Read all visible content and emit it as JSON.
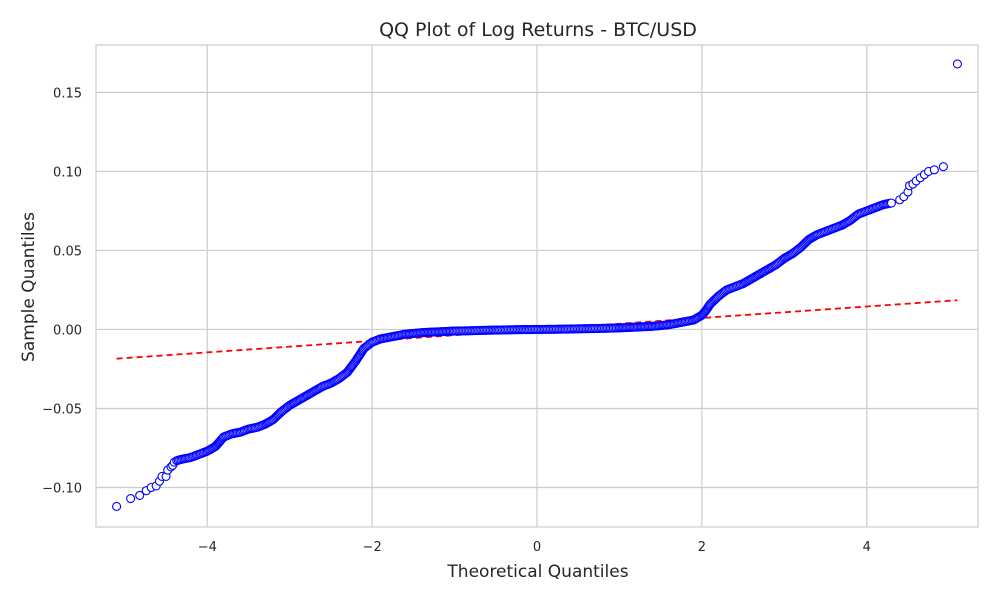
{
  "colors": {
    "background": "#ffffff",
    "plot_background": "#ffffff",
    "grid": "#cccccc",
    "frame": "#cccccc",
    "markers": "#0000ff",
    "reference_line": "#ff0000",
    "text": "#262626"
  },
  "chart_data": {
    "type": "scatter",
    "title": "QQ Plot of Log Returns - BTC/USD",
    "xlabel": "Theoretical Quantiles",
    "ylabel": "Sample Quantiles",
    "xlim": [
      -5.35,
      5.35
    ],
    "ylim": [
      -0.125,
      0.18
    ],
    "grid": true,
    "legend": "none",
    "x_ticks": [
      -4,
      -2,
      0,
      2,
      4
    ],
    "x_tick_labels": [
      "−4",
      "−2",
      "0",
      "2",
      "4"
    ],
    "y_ticks": [
      -0.1,
      -0.05,
      0.0,
      0.05,
      0.1,
      0.15
    ],
    "y_tick_labels": [
      "−0.10",
      "−0.05",
      "0.00",
      "0.05",
      "0.10",
      "0.15"
    ],
    "series": [
      {
        "marker": "open-circle",
        "color": "#0000ff",
        "points": [
          [
            -5.1,
            -0.112
          ],
          [
            -4.93,
            -0.107
          ],
          [
            -4.82,
            -0.105
          ],
          [
            -4.74,
            -0.102
          ],
          [
            -4.68,
            -0.1
          ],
          [
            -4.62,
            -0.099
          ],
          [
            -4.58,
            -0.096
          ],
          [
            -4.55,
            -0.093
          ],
          [
            -4.5,
            -0.093
          ],
          [
            -4.48,
            -0.089
          ],
          [
            -4.44,
            -0.087
          ],
          [
            -4.42,
            -0.086
          ],
          [
            -4.4,
            -0.084
          ],
          [
            -4.37,
            -0.083
          ],
          [
            -4.3,
            -0.082
          ],
          [
            -4.2,
            -0.081
          ],
          [
            -4.1,
            -0.079
          ],
          [
            -4.0,
            -0.077
          ],
          [
            -3.9,
            -0.074
          ],
          [
            -3.85,
            -0.071
          ],
          [
            -3.8,
            -0.068
          ],
          [
            -3.7,
            -0.066
          ],
          [
            -3.6,
            -0.065
          ],
          [
            -3.5,
            -0.063
          ],
          [
            -3.4,
            -0.062
          ],
          [
            -3.3,
            -0.06
          ],
          [
            -3.2,
            -0.057
          ],
          [
            -3.1,
            -0.052
          ],
          [
            -3.0,
            -0.048
          ],
          [
            -2.9,
            -0.045
          ],
          [
            -2.8,
            -0.042
          ],
          [
            -2.7,
            -0.039
          ],
          [
            -2.6,
            -0.036
          ],
          [
            -2.5,
            -0.034
          ],
          [
            -2.4,
            -0.031
          ],
          [
            -2.3,
            -0.027
          ],
          [
            -2.2,
            -0.02
          ],
          [
            -2.1,
            -0.012
          ],
          [
            -2.0,
            -0.008
          ],
          [
            -1.9,
            -0.006
          ],
          [
            -1.8,
            -0.005
          ],
          [
            -1.6,
            -0.003
          ],
          [
            -1.4,
            -0.002
          ],
          [
            -1.2,
            -0.0015
          ],
          [
            -1.0,
            -0.001
          ],
          [
            -0.8,
            -0.0008
          ],
          [
            -0.6,
            -0.0005
          ],
          [
            -0.4,
            -0.0003
          ],
          [
            -0.2,
            -0.0001
          ],
          [
            0.0,
            0.0
          ],
          [
            0.2,
            0.0001
          ],
          [
            0.4,
            0.0003
          ],
          [
            0.6,
            0.0005
          ],
          [
            0.8,
            0.0007
          ],
          [
            1.0,
            0.001
          ],
          [
            1.2,
            0.0015
          ],
          [
            1.4,
            0.002
          ],
          [
            1.6,
            0.003
          ],
          [
            1.8,
            0.005
          ],
          [
            1.9,
            0.006
          ],
          [
            2.0,
            0.009
          ],
          [
            2.05,
            0.012
          ],
          [
            2.1,
            0.016
          ],
          [
            2.2,
            0.021
          ],
          [
            2.3,
            0.025
          ],
          [
            2.4,
            0.027
          ],
          [
            2.5,
            0.029
          ],
          [
            2.6,
            0.032
          ],
          [
            2.7,
            0.035
          ],
          [
            2.8,
            0.038
          ],
          [
            2.9,
            0.041
          ],
          [
            3.0,
            0.045
          ],
          [
            3.1,
            0.048
          ],
          [
            3.2,
            0.052
          ],
          [
            3.3,
            0.057
          ],
          [
            3.4,
            0.06
          ],
          [
            3.5,
            0.062
          ],
          [
            3.6,
            0.064
          ],
          [
            3.7,
            0.066
          ],
          [
            3.8,
            0.069
          ],
          [
            3.9,
            0.073
          ],
          [
            4.0,
            0.075
          ],
          [
            4.1,
            0.077
          ],
          [
            4.2,
            0.079
          ],
          [
            4.3,
            0.08
          ],
          [
            4.4,
            0.082
          ],
          [
            4.45,
            0.084
          ],
          [
            4.5,
            0.087
          ],
          [
            4.52,
            0.091
          ],
          [
            4.56,
            0.092
          ],
          [
            4.6,
            0.094
          ],
          [
            4.65,
            0.096
          ],
          [
            4.7,
            0.098
          ],
          [
            4.75,
            0.1
          ],
          [
            4.82,
            0.101
          ],
          [
            4.93,
            0.103
          ],
          [
            5.1,
            0.168
          ]
        ]
      }
    ],
    "reference_line": {
      "style": "dashed",
      "color": "#ff0000",
      "from": [
        -5.1,
        -0.0185
      ],
      "to": [
        5.1,
        0.0185
      ]
    }
  }
}
